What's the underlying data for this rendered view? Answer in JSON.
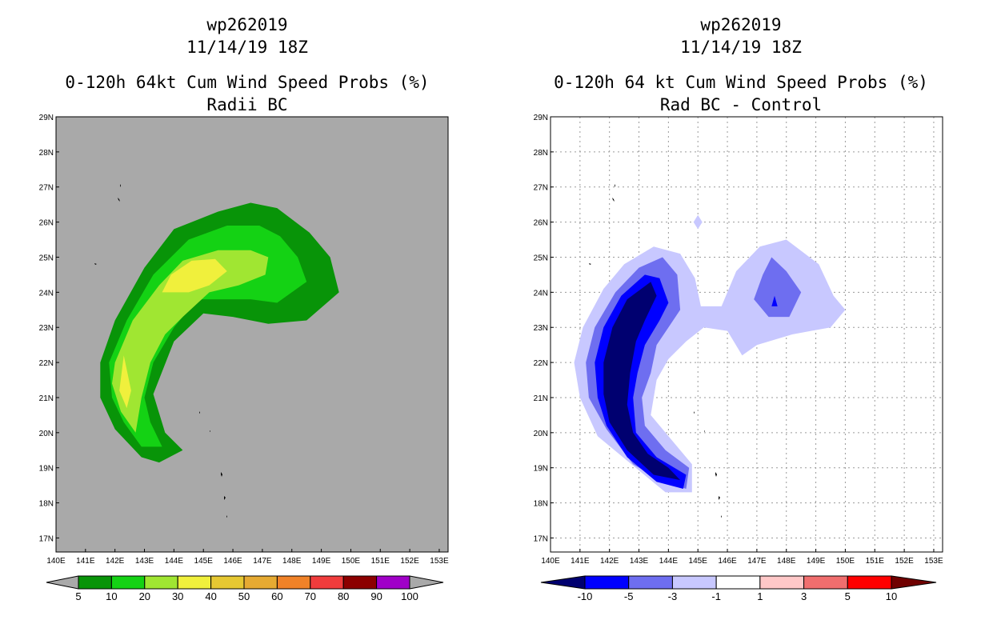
{
  "chart_data": [
    {
      "type": "heatmap",
      "title_lines": [
        "wp262019",
        "11/14/19 18Z",
        "0-120h 64kt Cum Wind Speed Probs (%)",
        "Radii BC"
      ],
      "x_ticks": [
        "140E",
        "141E",
        "142E",
        "143E",
        "144E",
        "145E",
        "146E",
        "147E",
        "148E",
        "149E",
        "150E",
        "151E",
        "152E",
        "153E"
      ],
      "y_ticks": [
        "17N",
        "18N",
        "19N",
        "20N",
        "21N",
        "22N",
        "23N",
        "24N",
        "25N",
        "26N",
        "27N",
        "28N",
        "29N"
      ],
      "xlim": [
        140,
        153.3
      ],
      "ylim": [
        16.6,
        29
      ],
      "background_color": "#a9a9a9",
      "grid": false,
      "colorbar": {
        "labels": [
          "5",
          "10",
          "20",
          "30",
          "40",
          "50",
          "60",
          "70",
          "80",
          "90",
          "100"
        ],
        "colors": [
          "#089408",
          "#14d214",
          "#a0e632",
          "#f0f03c",
          "#e6c832",
          "#e6aa32",
          "#f08228",
          "#f03c3c",
          "#8c0000",
          "#a000c8"
        ],
        "under_color": "#a9a9a9",
        "over_color": "#a9a9a9"
      },
      "contour_levels": [
        {
          "range": "5-10",
          "color": "#089408",
          "points": [
            [
              141.5,
              22.0
            ],
            [
              142.0,
              23.2
            ],
            [
              143.0,
              24.7
            ],
            [
              144.0,
              25.8
            ],
            [
              145.5,
              26.3
            ],
            [
              146.6,
              26.55
            ],
            [
              147.5,
              26.4
            ],
            [
              148.6,
              25.7
            ],
            [
              149.3,
              25.0
            ],
            [
              149.6,
              24.0
            ],
            [
              148.5,
              23.2
            ],
            [
              147.2,
              23.1
            ],
            [
              146.0,
              23.3
            ],
            [
              145.0,
              23.4
            ],
            [
              144.0,
              22.6
            ],
            [
              143.3,
              21.1
            ],
            [
              143.7,
              20.0
            ],
            [
              144.3,
              19.5
            ],
            [
              143.5,
              19.15
            ],
            [
              142.9,
              19.3
            ],
            [
              142.0,
              20.1
            ],
            [
              141.5,
              21.0
            ]
          ]
        },
        {
          "range": "10-20",
          "color": "#14d214",
          "points": [
            [
              141.8,
              22.0
            ],
            [
              142.4,
              23.2
            ],
            [
              143.3,
              24.5
            ],
            [
              144.5,
              25.5
            ],
            [
              145.8,
              25.9
            ],
            [
              146.9,
              25.9
            ],
            [
              147.6,
              25.6
            ],
            [
              148.2,
              25.0
            ],
            [
              148.5,
              24.3
            ],
            [
              147.5,
              23.7
            ],
            [
              146.6,
              23.8
            ],
            [
              145.7,
              23.8
            ],
            [
              144.8,
              23.8
            ],
            [
              144.0,
              23.0
            ],
            [
              143.3,
              22.0
            ],
            [
              143.0,
              21.0
            ],
            [
              143.2,
              20.3
            ],
            [
              143.6,
              19.6
            ],
            [
              142.9,
              19.6
            ],
            [
              142.3,
              20.3
            ],
            [
              141.9,
              21.0
            ]
          ]
        },
        {
          "range": "20-30",
          "color": "#a0e632",
          "points": [
            [
              142.0,
              22.0
            ],
            [
              142.6,
              23.2
            ],
            [
              143.5,
              24.2
            ],
            [
              144.3,
              24.9
            ],
            [
              145.5,
              25.2
            ],
            [
              146.6,
              25.2
            ],
            [
              147.2,
              25.0
            ],
            [
              147.1,
              24.5
            ],
            [
              146.2,
              24.2
            ],
            [
              145.2,
              24.0
            ],
            [
              144.3,
              23.3
            ],
            [
              143.7,
              22.8
            ],
            [
              143.2,
              22.0
            ],
            [
              142.9,
              21.0
            ],
            [
              142.7,
              20.0
            ],
            [
              142.2,
              20.6
            ],
            [
              141.9,
              21.4
            ]
          ]
        },
        {
          "range": "30-40",
          "color": "#f0f03c",
          "points": [
            [
              143.6,
              24.0
            ],
            [
              143.9,
              24.5
            ],
            [
              144.6,
              24.9
            ],
            [
              145.4,
              24.95
            ],
            [
              145.8,
              24.6
            ],
            [
              145.2,
              24.2
            ],
            [
              144.5,
              24.0
            ]
          ]
        },
        {
          "range": "30-40",
          "color": "#f0f03c",
          "points": [
            [
              142.15,
              21.2
            ],
            [
              142.3,
              22.2
            ],
            [
              142.55,
              21.2
            ],
            [
              142.4,
              20.7
            ]
          ]
        }
      ]
    },
    {
      "type": "heatmap",
      "title_lines": [
        "wp262019",
        "11/14/19 18Z",
        "0-120h 64 kt Cum Wind Speed Probs (%)",
        "Rad BC - Control"
      ],
      "x_ticks": [
        "140E",
        "141E",
        "142E",
        "143E",
        "144E",
        "145E",
        "146E",
        "147E",
        "148E",
        "149E",
        "150E",
        "151E",
        "152E",
        "153E"
      ],
      "y_ticks": [
        "17N",
        "18N",
        "19N",
        "20N",
        "21N",
        "22N",
        "23N",
        "24N",
        "25N",
        "26N",
        "27N",
        "28N",
        "29N"
      ],
      "xlim": [
        140,
        153.3
      ],
      "ylim": [
        16.6,
        29
      ],
      "background_color": "#ffffff",
      "grid": true,
      "colorbar": {
        "labels": [
          "-10",
          "-5",
          "-3",
          "-1",
          "1",
          "3",
          "5",
          "10"
        ],
        "colors": [
          "#0000ff",
          "#6e6ef0",
          "#c8c8ff",
          "#ffffff",
          "#ffc8c8",
          "#f06e6e",
          "#ff0000"
        ],
        "under_color": "#000070",
        "over_color": "#700000"
      },
      "contour_levels": [
        {
          "range": "-3 to -1",
          "color": "#c8c8ff",
          "points": [
            [
              140.8,
              22.0
            ],
            [
              141.1,
              23.0
            ],
            [
              141.8,
              24.1
            ],
            [
              142.5,
              24.8
            ],
            [
              143.5,
              25.3
            ],
            [
              144.4,
              25.1
            ],
            [
              144.9,
              24.4
            ],
            [
              145.1,
              23.6
            ],
            [
              145.8,
              23.6
            ],
            [
              146.3,
              24.6
            ],
            [
              147.1,
              25.3
            ],
            [
              148.0,
              25.5
            ],
            [
              149.1,
              24.8
            ],
            [
              149.6,
              23.9
            ],
            [
              150.0,
              23.5
            ],
            [
              149.5,
              23.0
            ],
            [
              148.2,
              22.8
            ],
            [
              147.0,
              22.5
            ],
            [
              146.5,
              22.2
            ],
            [
              146.0,
              22.9
            ],
            [
              145.2,
              23.0
            ],
            [
              144.6,
              22.6
            ],
            [
              144.0,
              22.1
            ],
            [
              143.6,
              21.5
            ],
            [
              143.4,
              20.5
            ],
            [
              144.1,
              19.8
            ],
            [
              144.8,
              19.1
            ],
            [
              144.8,
              18.3
            ],
            [
              143.9,
              18.3
            ],
            [
              142.6,
              19.2
            ],
            [
              141.6,
              19.9
            ],
            [
              141.0,
              21.0
            ]
          ]
        },
        {
          "range": "-3 to -1",
          "color": "#c8c8ff",
          "points": [
            [
              145.0,
              26.2
            ],
            [
              145.15,
              26.0
            ],
            [
              145.0,
              25.8
            ],
            [
              144.85,
              26.0
            ]
          ]
        },
        {
          "range": "-5 to -3",
          "color": "#6e6ef0",
          "points": [
            [
              141.2,
              22.0
            ],
            [
              141.5,
              23.0
            ],
            [
              142.2,
              24.0
            ],
            [
              143.0,
              24.7
            ],
            [
              143.8,
              25.0
            ],
            [
              144.3,
              24.5
            ],
            [
              144.4,
              23.5
            ],
            [
              144.0,
              23.0
            ],
            [
              143.6,
              22.5
            ],
            [
              143.4,
              21.7
            ],
            [
              143.1,
              21.0
            ],
            [
              143.2,
              20.2
            ],
            [
              143.9,
              19.5
            ],
            [
              144.7,
              19.0
            ],
            [
              144.6,
              18.4
            ],
            [
              143.8,
              18.6
            ],
            [
              142.8,
              19.1
            ],
            [
              141.9,
              20.1
            ],
            [
              141.3,
              21.0
            ]
          ]
        },
        {
          "range": "-5 to -3",
          "color": "#6e6ef0",
          "points": [
            [
              147.5,
              25.0
            ],
            [
              148.0,
              24.6
            ],
            [
              148.5,
              24.0
            ],
            [
              148.1,
              23.3
            ],
            [
              147.4,
              23.3
            ],
            [
              146.9,
              23.8
            ],
            [
              147.2,
              24.5
            ]
          ]
        },
        {
          "range": "-10 to -5",
          "color": "#0000ff",
          "points": [
            [
              141.5,
              22.0
            ],
            [
              141.8,
              23.0
            ],
            [
              142.4,
              23.9
            ],
            [
              143.2,
              24.5
            ],
            [
              143.7,
              24.4
            ],
            [
              144.0,
              23.7
            ],
            [
              143.7,
              23.2
            ],
            [
              143.2,
              22.5
            ],
            [
              142.95,
              21.7
            ],
            [
              142.8,
              21.0
            ],
            [
              142.9,
              20.0
            ],
            [
              143.6,
              19.3
            ],
            [
              144.6,
              18.8
            ],
            [
              144.5,
              18.4
            ],
            [
              143.6,
              18.6
            ],
            [
              142.6,
              19.3
            ],
            [
              141.9,
              20.2
            ],
            [
              141.6,
              21.0
            ]
          ]
        },
        {
          "range": "-10 to -5",
          "color": "#0000ff",
          "points": [
            [
              147.6,
              23.9
            ],
            [
              147.7,
              23.6
            ],
            [
              147.5,
              23.6
            ]
          ]
        },
        {
          "range": "< -10",
          "color": "#000070",
          "points": [
            [
              141.8,
              22.0
            ],
            [
              142.1,
              23.0
            ],
            [
              142.6,
              23.8
            ],
            [
              143.4,
              24.3
            ],
            [
              143.6,
              23.9
            ],
            [
              143.2,
              23.2
            ],
            [
              142.9,
              22.6
            ],
            [
              142.7,
              21.7
            ],
            [
              142.6,
              20.8
            ],
            [
              142.8,
              20.0
            ],
            [
              143.3,
              19.4
            ],
            [
              144.0,
              19.0
            ],
            [
              144.4,
              18.65
            ],
            [
              143.5,
              18.8
            ],
            [
              142.6,
              19.5
            ],
            [
              142.0,
              20.3
            ],
            [
              141.8,
              21.1
            ]
          ]
        }
      ]
    }
  ]
}
